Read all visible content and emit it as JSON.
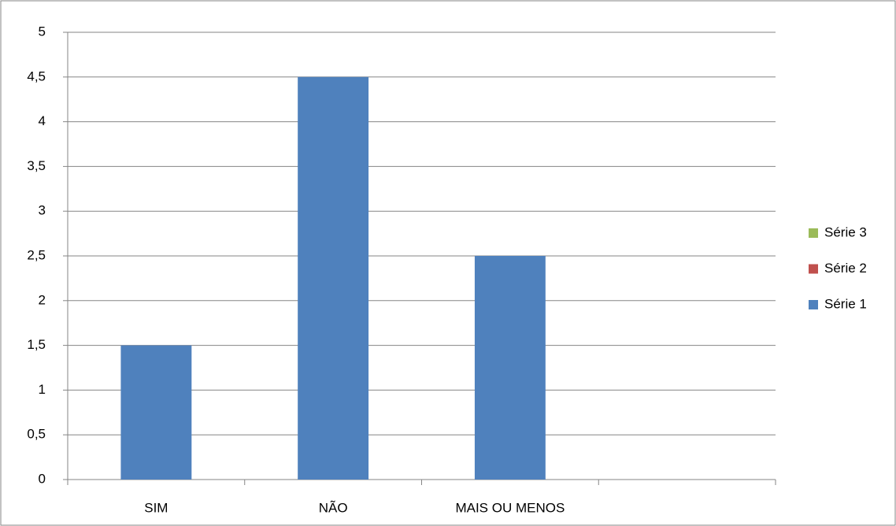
{
  "chart_data": {
    "type": "bar",
    "stacked": true,
    "categories": [
      "SIM",
      "NÃO",
      "MAIS OU MENOS",
      null
    ],
    "series": [
      {
        "name": "Série 1",
        "color": "#4f81bd",
        "values": [
          1.5,
          4.5,
          2.5,
          null
        ]
      },
      {
        "name": "Série 2",
        "color": "#c0504d",
        "values": [
          null,
          null,
          null,
          null
        ]
      },
      {
        "name": "Série 3",
        "color": "#9bbb59",
        "values": [
          null,
          null,
          null,
          null
        ]
      }
    ],
    "ylim": [
      0,
      5
    ],
    "yticks": [
      0,
      {
        "value": 0.5,
        "label": "0,5"
      },
      1,
      {
        "value": 1.5,
        "label": "1,5"
      },
      2,
      {
        "value": 2.5,
        "label": "2,5"
      },
      3,
      {
        "value": 3.5,
        "label": "3,5"
      },
      4,
      {
        "value": 4.5,
        "label": "4,5"
      },
      5
    ],
    "grid": true,
    "legend": "right"
  }
}
